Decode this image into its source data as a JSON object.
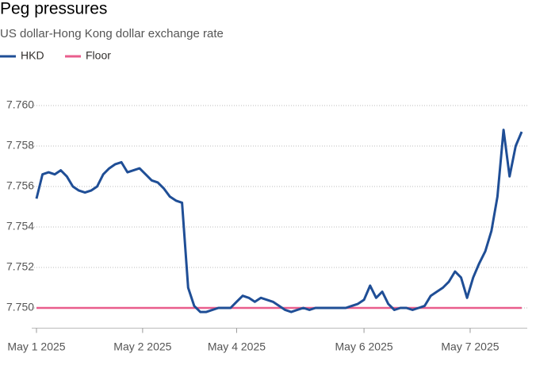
{
  "chart_data": {
    "type": "line",
    "title": "Peg pressures",
    "subtitle": "US dollar-Hong Kong dollar exchange rate",
    "x": [
      0,
      1,
      2,
      3,
      4,
      5,
      6,
      7,
      8,
      9,
      10,
      11,
      12,
      13,
      14,
      15,
      16,
      17,
      18,
      19,
      20,
      21,
      22,
      23,
      24,
      25,
      26,
      27,
      28,
      29,
      30,
      31,
      32,
      33,
      34,
      35,
      36,
      37,
      38,
      39,
      40,
      41,
      42,
      43,
      44,
      45,
      46,
      47,
      48,
      49,
      50,
      51,
      52,
      53,
      54,
      55,
      56,
      57,
      58,
      59,
      60,
      61,
      62,
      63,
      64,
      65,
      66,
      67,
      68,
      69,
      70,
      71,
      72,
      73,
      74,
      75,
      76,
      77,
      78,
      79,
      80
    ],
    "series": [
      {
        "name": "HKD",
        "color": "#1f4e96",
        "values": [
          7.7554,
          7.7566,
          7.7567,
          7.7566,
          7.7568,
          7.7565,
          7.756,
          7.7558,
          7.7557,
          7.7558,
          7.756,
          7.7566,
          7.7569,
          7.7571,
          7.7572,
          7.7567,
          7.7568,
          7.7569,
          7.7566,
          7.7563,
          7.7562,
          7.7559,
          7.7555,
          7.7553,
          7.7552,
          7.751,
          7.7501,
          7.7498,
          7.7498,
          7.7499,
          7.75,
          7.75,
          7.75,
          7.7503,
          7.7506,
          7.7505,
          7.7503,
          7.7505,
          7.7504,
          7.7503,
          7.7501,
          7.7499,
          7.7498,
          7.7499,
          7.75,
          7.7499,
          7.75,
          7.75,
          7.75,
          7.75,
          7.75,
          7.75,
          7.7501,
          7.7502,
          7.7504,
          7.7511,
          7.7505,
          7.7508,
          7.7502,
          7.7499,
          7.75,
          7.75,
          7.7499,
          7.75,
          7.7501,
          7.7506,
          7.7508,
          7.751,
          7.7513,
          7.7518,
          7.7515,
          7.7505,
          7.7515,
          7.7522,
          7.7528,
          7.7538,
          7.7555,
          7.7588,
          7.7565,
          7.758,
          7.7587
        ]
      },
      {
        "name": "Floor",
        "color": "#e95d8c",
        "values": [
          7.75,
          7.75,
          7.75,
          7.75,
          7.75,
          7.75,
          7.75,
          7.75,
          7.75,
          7.75,
          7.75,
          7.75,
          7.75,
          7.75,
          7.75,
          7.75,
          7.75,
          7.75,
          7.75,
          7.75,
          7.75,
          7.75,
          7.75,
          7.75,
          7.75,
          7.75,
          7.75,
          7.75,
          7.75,
          7.75,
          7.75,
          7.75,
          7.75,
          7.75,
          7.75,
          7.75,
          7.75,
          7.75,
          7.75,
          7.75,
          7.75,
          7.75,
          7.75,
          7.75,
          7.75,
          7.75,
          7.75,
          7.75,
          7.75,
          7.75,
          7.75,
          7.75,
          7.75,
          7.75,
          7.75,
          7.75,
          7.75,
          7.75,
          7.75,
          7.75,
          7.75,
          7.75,
          7.75,
          7.75,
          7.75,
          7.75,
          7.75,
          7.75,
          7.75,
          7.75,
          7.75,
          7.75,
          7.75,
          7.75,
          7.75,
          7.75,
          7.75,
          7.75,
          7.75,
          7.75,
          7.75
        ]
      }
    ],
    "xlim": [
      0,
      80
    ],
    "xticks": [
      {
        "value": 0,
        "label": "May 1 2025"
      },
      {
        "value": 17.5,
        "label": "May 2 2025"
      },
      {
        "value": 33,
        "label": "May 4 2025"
      },
      {
        "value": 54,
        "label": "May 6 2025"
      },
      {
        "value": 71.5,
        "label": "May 7 2025"
      }
    ],
    "ylim": [
      7.749,
      7.761
    ],
    "yticks": [
      {
        "value": 7.75,
        "label": "7.750"
      },
      {
        "value": 7.752,
        "label": "7.752"
      },
      {
        "value": 7.754,
        "label": "7.754"
      },
      {
        "value": 7.756,
        "label": "7.756"
      },
      {
        "value": 7.758,
        "label": "7.758"
      },
      {
        "value": 7.76,
        "label": "7.760"
      }
    ],
    "grid": true
  }
}
